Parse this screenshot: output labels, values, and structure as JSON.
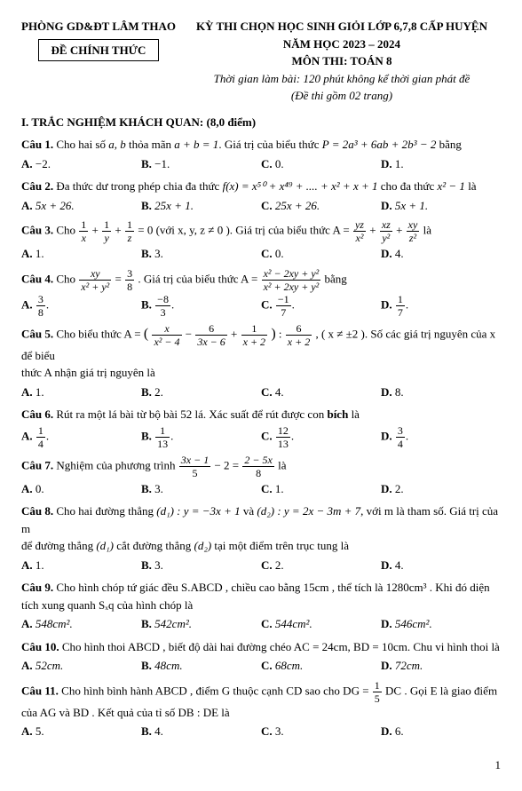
{
  "header": {
    "left": "PHÒNG GD&ĐT LÂM THAO",
    "box": "ĐỀ CHÍNH THỨC",
    "r1": "KỲ THI CHỌN HỌC SINH GIỎI LỚP 6,7,8 CẤP HUYỆN",
    "r2": "NĂM HỌC 2023 – 2024",
    "r3": "MÔN THI: TOÁN 8",
    "r4": "Thời gian làm bài: 120 phút không kể thời gian phát đề",
    "r5": "(Đề thi gồm 02 trang)"
  },
  "section": "I. TRẮC NGHIỆM KHÁCH QUAN: (8,0 điểm)",
  "q1": {
    "label": "Câu 1.",
    "pre": " Cho hai số ",
    "vars": "a, b",
    "mid1": " thỏa mãn ",
    "cond": "a + b = 1",
    "mid2": ". Giá trị của biểu thức ",
    "expr": "P = 2a³ + 6ab + 2b³ − 2",
    "post": " bằng",
    "A": "−2.",
    "B": "−1.",
    "C": "0.",
    "D": "1."
  },
  "q2": {
    "label": "Câu 2.",
    "pre": " Đa thức dư trong phép chia đa thức ",
    "expr": "f(x) = x⁵⁰ + x⁴⁹ + .... + x² + x + 1",
    "mid": " cho đa thức ",
    "div": "x² − 1",
    "post": " là",
    "A": "5x + 26.",
    "B": "25x + 1.",
    "C": "25x + 26.",
    "D": "5x + 1."
  },
  "q3": {
    "label": "Câu 3.",
    "pre": " Cho ",
    "cond_tail": " = 0 (với  x, y, z ≠ 0 ). Giá trị của biểu thức  A = ",
    "post": "  là",
    "A": "1.",
    "B": "3.",
    "C": "0.",
    "D": "4.",
    "f1n": "1",
    "f1d": "x",
    "f2n": "1",
    "f2d": "y",
    "f3n": "1",
    "f3d": "z",
    "a1n": "yz",
    "a1d": "x²",
    "a2n": "xz",
    "a2d": "y²",
    "a3n": "xy",
    "a3d": "z²"
  },
  "q4": {
    "label": "Câu 4.",
    "pre": " Cho ",
    "mid": ". Giá trị của biểu thức  A = ",
    "post": "  bằng",
    "gnum": "xy",
    "gden": "x² + y²",
    "rnum": "3",
    "rden": "8",
    "Anum": "x² − 2xy + y²",
    "Aden": "x² + 2xy + y²",
    "An": "3",
    "Ad": "8",
    "Bn": "−8",
    "Bd": "3",
    "Cn": "−1",
    "Cd": "7",
    "Dn": "1",
    "Dd": "7"
  },
  "q5": {
    "label": "Câu 5.",
    "pre": " Cho biểu thức  A = ",
    "post1": " , ( x ≠ ±2 ). Số các giá trị nguyên của  x  để biểu",
    "post2": "thức  A  nhận giá trị nguyên là",
    "p1n": "x",
    "p1d": "x² − 4",
    "p2n": "6",
    "p2d": "3x − 6",
    "p3n": "1",
    "p3d": "x + 2",
    "dvn": "6",
    "dvd": "x + 2",
    "A": "1.",
    "B": "2.",
    "C": "4.",
    "D": "8."
  },
  "q6": {
    "label": "Câu 6.",
    "text": " Rút ra một lá bài từ bộ bài  52  lá. Xác suất để rút được con ",
    "kw": "bích",
    "post": " là",
    "An": "1",
    "Ad": "4",
    "Bn": "1",
    "Bd": "13",
    "Cn": "12",
    "Cd": "13",
    "Dn": "3",
    "Dd": "4"
  },
  "q7": {
    "label": "Câu 7.",
    "pre": " Nghiệm của phương trình  ",
    "Ln": "3x − 1",
    "Ld": "5",
    "mid1": " − 2 = ",
    "Rn": "2 − 5x",
    "Rd": "8",
    "post": "  là",
    "A": "0.",
    "B": "3.",
    "C": "1.",
    "D": "2."
  },
  "q8": {
    "label": "Câu 8.",
    "pre": " Cho hai đường thẳng ",
    "d1": "(d₁) : y = −3x + 1",
    "mid1": " và ",
    "d2": "(d₂) : y = 2x − 3m + 7",
    "mid2": ", với  m  là tham số. Giá trị của  m",
    "line2a": "để đường thẳng ",
    "dd1": "(d₁)",
    "line2b": " cắt đường thẳng ",
    "dd2": "(d₂)",
    "line2c": " tại một điểm trên trục tung là",
    "A": "1.",
    "B": "3.",
    "C": "2.",
    "D": "4."
  },
  "q9": {
    "label": "Câu 9.",
    "pre": " Cho hình chóp tứ giác đều  S.ABCD , chiều cao bằng 15cm , thể tích là 1280cm³ . Khi đó diện",
    "line2": "tích xung quanh  Sₓq  của hình chóp là",
    "A": "548cm².",
    "B": "542cm².",
    "C": "544cm².",
    "D": "546cm²."
  },
  "q10": {
    "label": "Câu 10.",
    "text": " Cho hình thoi  ABCD , biết độ dài hai đường chéo  AC = 24cm, BD = 10cm. Chu vi hình thoi là",
    "A": "52cm.",
    "B": "48cm.",
    "C": "68cm.",
    "D": "72cm."
  },
  "q11": {
    "label": "Câu 11.",
    "pre": " Cho hình bình hành  ABCD , điểm  G  thuộc cạnh  CD  sao cho  DG = ",
    "fn": "1",
    "fd": "5",
    "mid": " DC . Gọi  E  là giao điểm",
    "line2": "của  AG  và  BD . Kết quả của tỉ số  DB : DE  là",
    "A": "5.",
    "B": "4.",
    "C": "3.",
    "D": "6."
  },
  "opt_labels": {
    "A": "A.",
    "B": "B.",
    "C": "C.",
    "D": "D."
  },
  "pagenum": "1"
}
